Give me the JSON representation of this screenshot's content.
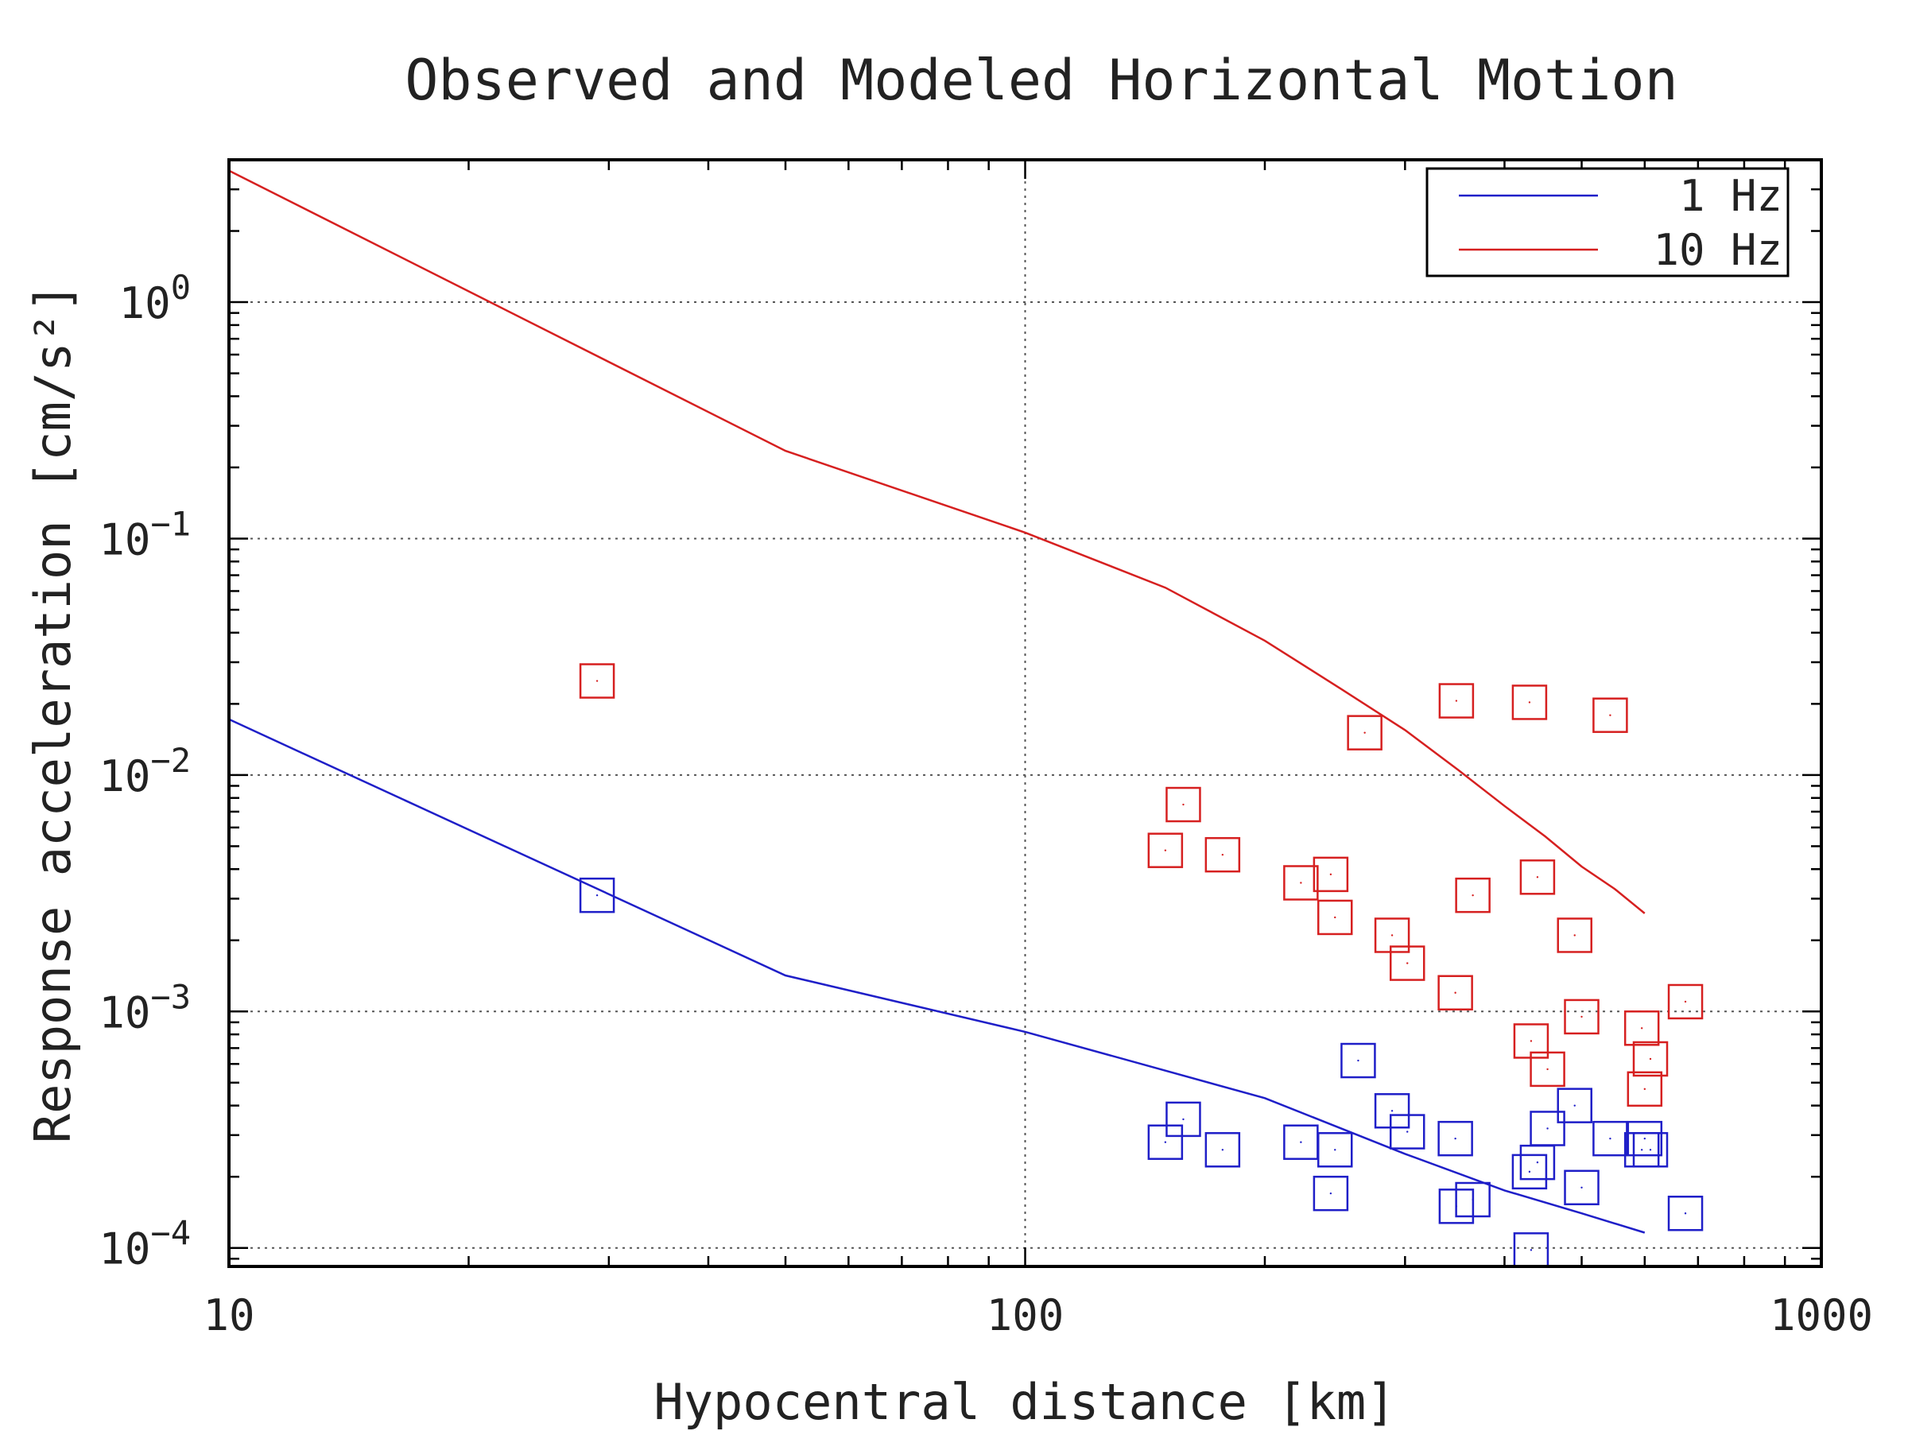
{
  "chart_data": {
    "type": "scatter",
    "title": "Observed and Modeled Horizontal Motion",
    "xlabel": "Hypocentral distance [km]",
    "ylabel": "Response acceleration [cm/s²]",
    "xscale": "log",
    "yscale": "log",
    "xlim": [
      10,
      1000
    ],
    "ylim": [
      8.35e-05,
      4.0
    ],
    "xticks": [
      {
        "value": 10,
        "label": "10"
      },
      {
        "value": 100,
        "label": "100"
      },
      {
        "value": 1000,
        "label": "1000"
      }
    ],
    "yticks": [
      {
        "value": 1,
        "base": "10",
        "exp": "0"
      },
      {
        "value": 0.1,
        "base": "10",
        "exp": "−1"
      },
      {
        "value": 0.01,
        "base": "10",
        "exp": "−2"
      },
      {
        "value": 0.001,
        "base": "10",
        "exp": "−3"
      },
      {
        "value": 0.0001,
        "base": "10",
        "exp": "−4"
      }
    ],
    "grid": true,
    "legend_position": "top-right",
    "series": [
      {
        "name": "1 Hz",
        "color": "#1f1fc8",
        "model_line": [
          [
            10,
            0.0172
          ],
          [
            50,
            0.00142
          ],
          [
            100,
            0.00082
          ],
          [
            200,
            0.00043
          ],
          [
            300,
            0.00025
          ],
          [
            400,
            0.000175
          ],
          [
            500,
            0.00014
          ],
          [
            600,
            0.000116
          ]
        ],
        "observed": [
          [
            29,
            0.0031
          ],
          [
            150,
            0.00028
          ],
          [
            158,
            0.00035
          ],
          [
            177,
            0.00026
          ],
          [
            222,
            0.00028
          ],
          [
            242,
            0.00017
          ],
          [
            245,
            0.00026
          ],
          [
            262,
            0.00062
          ],
          [
            289,
            0.00038
          ],
          [
            302,
            0.00031
          ],
          [
            347,
            0.00029
          ],
          [
            348,
            0.00015
          ],
          [
            365,
            0.00016
          ],
          [
            430,
            0.00021
          ],
          [
            432,
            9.8e-05
          ],
          [
            440,
            0.00023
          ],
          [
            453,
            0.00032
          ],
          [
            490,
            0.0004
          ],
          [
            500,
            0.00018
          ],
          [
            543,
            0.00029
          ],
          [
            595,
            0.00026
          ],
          [
            600,
            0.00029
          ],
          [
            610,
            0.00026
          ],
          [
            675,
            0.00014
          ]
        ]
      },
      {
        "name": "10 Hz",
        "color": "#d62020",
        "model_line": [
          [
            10,
            3.6
          ],
          [
            50,
            0.235
          ],
          [
            100,
            0.106
          ],
          [
            150,
            0.062
          ],
          [
            200,
            0.037
          ],
          [
            250,
            0.023
          ],
          [
            300,
            0.0155
          ],
          [
            350,
            0.0105
          ],
          [
            400,
            0.0074
          ],
          [
            450,
            0.0055
          ],
          [
            500,
            0.0041
          ],
          [
            550,
            0.0033
          ],
          [
            600,
            0.0026
          ]
        ],
        "observed": [
          [
            29,
            0.025
          ],
          [
            150,
            0.0048
          ],
          [
            158,
            0.0075
          ],
          [
            177,
            0.0046
          ],
          [
            222,
            0.0035
          ],
          [
            242,
            0.0038
          ],
          [
            245,
            0.0025
          ],
          [
            267,
            0.0151
          ],
          [
            289,
            0.0021
          ],
          [
            302,
            0.0016
          ],
          [
            347,
            0.0012
          ],
          [
            348,
            0.0206
          ],
          [
            365,
            0.0031
          ],
          [
            430,
            0.0203
          ],
          [
            432,
            0.00075
          ],
          [
            440,
            0.0037
          ],
          [
            453,
            0.00057
          ],
          [
            490,
            0.0021
          ],
          [
            500,
            0.00095
          ],
          [
            543,
            0.0179
          ],
          [
            595,
            0.00085
          ],
          [
            600,
            0.00047
          ],
          [
            610,
            0.00063
          ],
          [
            675,
            0.0011
          ]
        ]
      }
    ]
  }
}
